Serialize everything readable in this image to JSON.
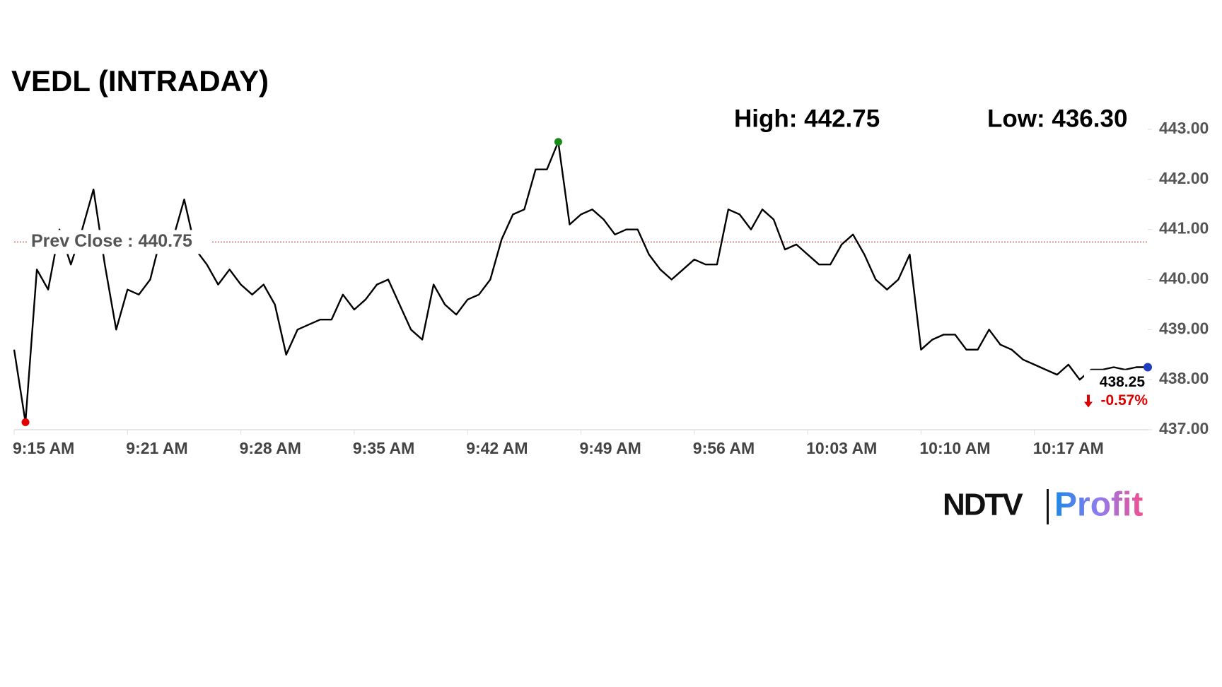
{
  "chart_data": {
    "type": "line",
    "title": "VEDL (INTRADAY)",
    "high_label": "High: 442.75",
    "low_label": "Low: 436.30",
    "prev_close": {
      "label": "Prev Close : 440.75",
      "value": 440.75,
      "color": "#d9534f"
    },
    "last_price": "438.25",
    "change": "-0.57%",
    "change_color": "#e00000",
    "high_color": "#1a8a1a",
    "low_color": "#e00000",
    "last_color": "#1f3fbf",
    "categories": [
      "9:15 AM",
      null,
      null,
      null,
      null,
      null,
      null,
      null,
      null,
      null,
      "9:21 AM",
      null,
      null,
      null,
      null,
      null,
      null,
      null,
      null,
      null,
      "9:28 AM",
      null,
      null,
      null,
      null,
      null,
      null,
      null,
      null,
      null,
      "9:35 AM",
      null,
      null,
      null,
      null,
      null,
      null,
      null,
      null,
      null,
      "9:42 AM",
      null,
      null,
      null,
      null,
      null,
      null,
      null,
      null,
      null,
      "9:49 AM",
      null,
      null,
      null,
      null,
      null,
      null,
      null,
      null,
      null,
      "9:56 AM",
      null,
      null,
      null,
      null,
      null,
      null,
      null,
      null,
      null,
      "10:03 AM",
      null,
      null,
      null,
      null,
      null,
      null,
      null,
      null,
      null,
      "10:10 AM",
      null,
      null,
      null,
      null,
      null,
      null,
      null,
      null,
      null,
      "10:17 AM",
      null,
      null,
      null,
      null,
      null,
      null,
      null,
      null,
      null,
      null
    ],
    "series": [
      {
        "name": "VEDL",
        "color": "#000000",
        "values": [
          438.6,
          437.15,
          440.2,
          439.8,
          441.0,
          440.3,
          441.0,
          441.8,
          440.3,
          439.0,
          439.8,
          439.7,
          440.0,
          440.9,
          440.8,
          441.6,
          440.6,
          440.3,
          439.9,
          440.2,
          439.9,
          439.7,
          439.9,
          439.5,
          438.5,
          439.0,
          439.1,
          439.2,
          439.2,
          439.7,
          439.4,
          439.6,
          439.9,
          440.0,
          439.5,
          439.0,
          438.8,
          439.9,
          439.5,
          439.3,
          439.6,
          439.7,
          440.0,
          440.8,
          441.3,
          441.4,
          442.2,
          442.2,
          442.75,
          441.1,
          441.3,
          441.4,
          441.2,
          440.9,
          441.0,
          441.0,
          440.5,
          440.2,
          440.0,
          440.2,
          440.4,
          440.3,
          440.3,
          441.4,
          441.3,
          441.0,
          441.4,
          441.2,
          440.6,
          440.7,
          440.5,
          440.3,
          440.3,
          440.7,
          440.9,
          440.5,
          440.0,
          439.8,
          440.0,
          440.5,
          438.6,
          438.8,
          438.9,
          438.9,
          438.6,
          438.6,
          439.0,
          438.7,
          438.6,
          438.4,
          438.3,
          438.2,
          438.1,
          438.3,
          438.0,
          438.2,
          438.2,
          438.25,
          438.2,
          438.25,
          438.25
        ]
      }
    ],
    "ylim": [
      437,
      443
    ],
    "yticks": [
      {
        "value": 437,
        "label": "437.00"
      },
      {
        "value": 438,
        "label": "438.00"
      },
      {
        "value": 439,
        "label": "439.00"
      },
      {
        "value": 440,
        "label": "440.00"
      },
      {
        "value": 441,
        "label": "441.00"
      },
      {
        "value": 442,
        "label": "442.00"
      },
      {
        "value": 443,
        "label": "443.00"
      }
    ],
    "brand": {
      "name": "NDTV",
      "product": "Profit"
    }
  }
}
